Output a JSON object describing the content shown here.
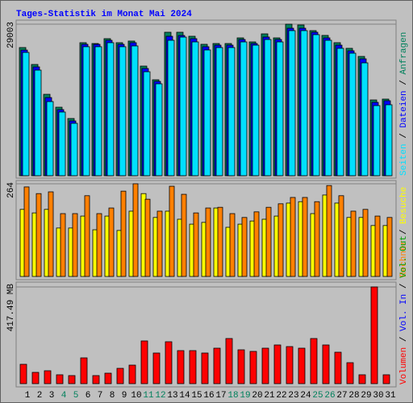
{
  "chart_data": {
    "type": "bar",
    "title": "Tages-Statistik im Monat Mai 2024",
    "legend_separator": "/",
    "categories": [
      "1",
      "2",
      "3",
      "4",
      "5",
      "6",
      "7",
      "8",
      "9",
      "10",
      "11",
      "12",
      "13",
      "14",
      "15",
      "16",
      "17",
      "18",
      "19",
      "20",
      "21",
      "22",
      "23",
      "24",
      "25",
      "26",
      "27",
      "28",
      "29",
      "30",
      "31"
    ],
    "category_colors": [
      "#000000",
      "#000000",
      "#000000",
      "#00805c",
      "#00805c",
      "#000000",
      "#000000",
      "#000000",
      "#000000",
      "#000000",
      "#00805c",
      "#00805c",
      "#000000",
      "#000000",
      "#000000",
      "#000000",
      "#000000",
      "#00805c",
      "#00805c",
      "#000000",
      "#000000",
      "#000000",
      "#000000",
      "#000000",
      "#00805c",
      "#00805c",
      "#000000",
      "#000000",
      "#000000",
      "#000000",
      "#000000"
    ],
    "panels": [
      {
        "ylim": [
          0,
          29003
        ],
        "yticks": [
          29003
        ],
        "series": [
          {
            "name": "Seiten",
            "color": "#00e0ff",
            "values": [
              23600,
              20210,
              14190,
              12190,
              10030,
              24690,
              24690,
              25460,
              24690,
              24840,
              19900,
              17590,
              25920,
              26530,
              25610,
              24070,
              24530,
              24530,
              25610,
              24990,
              26070,
              25610,
              27770,
              27770,
              27000,
              25920,
              24380,
              23450,
              21600,
              13420,
              13580
            ]
          },
          {
            "name": "Dateien",
            "color": "#0000ff",
            "values": [
              24050,
              20830,
              14960,
              12650,
              10490,
              25150,
              25150,
              25920,
              25150,
              25460,
              20520,
              18050,
              26690,
              26840,
              26230,
              24690,
              24990,
              24990,
              26070,
              25300,
              26540,
              26070,
              28230,
              28230,
              27460,
              26380,
              24990,
              23910,
              22370,
              14040,
              14350
            ]
          },
          {
            "name": "Anfragen",
            "color": "#00805c",
            "values": [
              24530,
              21290,
              15580,
              13110,
              10950,
              25460,
              25300,
              26230,
              25460,
              25770,
              20980,
              18360,
              27460,
              27460,
              26690,
              25150,
              25300,
              25300,
              26380,
              25610,
              27150,
              26380,
              29003,
              28850,
              27770,
              26850,
              25460,
              24380,
              22830,
              14500,
              14660
            ]
          }
        ]
      },
      {
        "ylim": [
          0,
          264
        ],
        "yticks": [
          264
        ],
        "series": [
          {
            "name": "Rechner",
            "color": "#ff8000",
            "values": [
              255,
              236,
              241,
              179,
              179,
              230,
              179,
              195,
              243,
              264,
              220,
              186,
              257,
              234,
              181,
              195,
              197,
              179,
              168,
              184,
              197,
              207,
              225,
              225,
              213,
              259,
              230,
              186,
              191,
              172,
              168
            ]
          },
          {
            "name": "Besuche",
            "color": "#ffff00",
            "values": [
              191,
              181,
              191,
              138,
              138,
              172,
              133,
              172,
              131,
              186,
              236,
              168,
              186,
              163,
              149,
              154,
              195,
              140,
              149,
              158,
              163,
              172,
              209,
              213,
              179,
              232,
              209,
              168,
              168,
              145,
              145
            ]
          }
        ]
      },
      {
        "ylim": [
          0,
          417.49
        ],
        "yticks": [
          {
            "value": 417.49,
            "label": "417.49 MB"
          }
        ],
        "series": [
          {
            "name": "Volumen",
            "color": "#ff0000",
            "values": [
              83.5,
              48.7,
              55.7,
              38.3,
              34.8,
              111.3,
              34.8,
              45.2,
              66.1,
              80.0,
              184.4,
              132.2,
              180.9,
              142.6,
              142.6,
              132.2,
              153.1,
              194.8,
              146.1,
              139.2,
              153.1,
              167.0,
              160.0,
              153.1,
              194.8,
              167.0,
              135.7,
              90.5,
              38.3,
              417.49,
              38.3
            ]
          },
          {
            "name": "Vol. In",
            "color": "#0000ff"
          },
          {
            "name": "Vol. Out",
            "color": "#00a000"
          }
        ]
      }
    ]
  }
}
